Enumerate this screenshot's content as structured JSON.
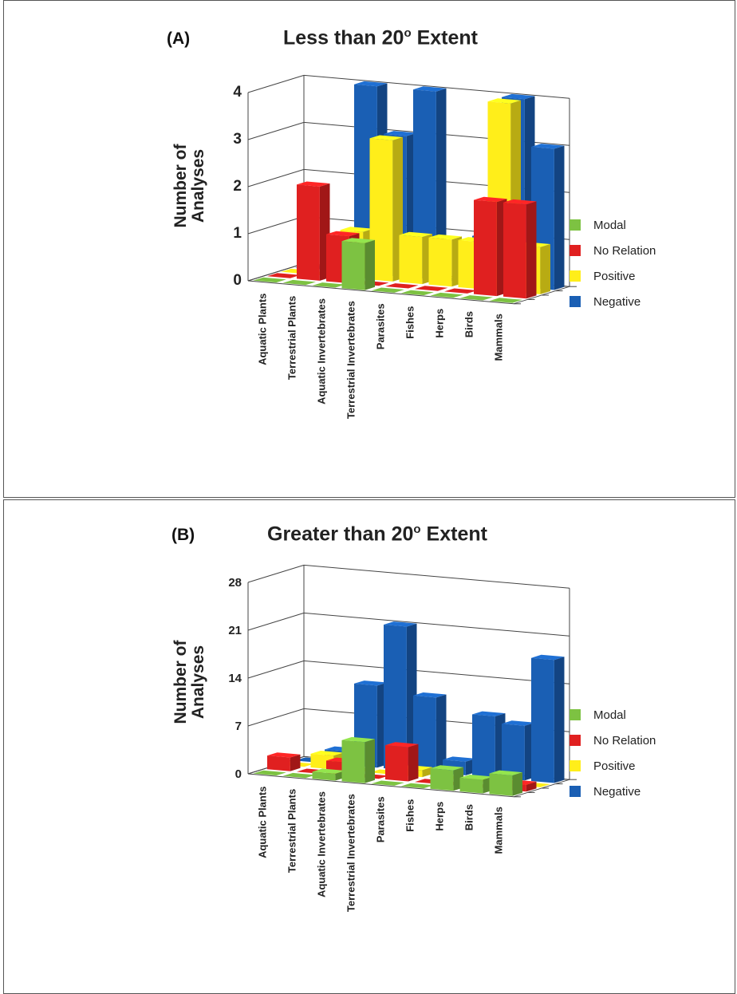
{
  "chart_data": [
    {
      "type": "bar",
      "panel_label": "(A)",
      "title_main": "Less than 20",
      "title_sup": "o",
      "title_rest": " Extent",
      "ylabel_line1": "Number of",
      "ylabel_line2": "Analyses",
      "ylim": [
        0,
        4
      ],
      "yticks": [
        "0",
        "1",
        "2",
        "3",
        "4"
      ],
      "categories": [
        "Aquatic Plants",
        "Terrestrial Plants",
        "Aquatic Invertebrates",
        "Terrestrial Invertebrates",
        "Parasites",
        "Fishes",
        "Herps",
        "Birds",
        "Mammals"
      ],
      "series": [
        {
          "name": "Modal",
          "color": "#7dc242",
          "values": [
            0,
            0,
            0,
            1,
            0,
            0,
            0,
            0,
            0
          ]
        },
        {
          "name": "No Relation",
          "color": "#e02020",
          "values": [
            0,
            2,
            1,
            0,
            0,
            0,
            0,
            2,
            2
          ]
        },
        {
          "name": "Positive",
          "color": "#ffee1a",
          "values": [
            0,
            0,
            1,
            3,
            1,
            1,
            1,
            4,
            1
          ]
        },
        {
          "name": "Negative",
          "color": "#1a5fb4",
          "values": [
            0,
            0,
            4,
            3,
            4,
            0,
            1,
            4,
            3
          ]
        }
      ],
      "legend_position": "right",
      "grid": true
    },
    {
      "type": "bar",
      "panel_label": "(B)",
      "title_main": "Greater than 20",
      "title_sup": "o",
      "title_rest": " Extent",
      "ylabel_line1": "Number of",
      "ylabel_line2": "Analyses",
      "ylim": [
        0,
        28
      ],
      "yticks": [
        "0",
        "7",
        "14",
        "21",
        "28"
      ],
      "categories": [
        "Aquatic Plants",
        "Terrestrial Plants",
        "Aquatic Invertebrates",
        "Terrestrial Invertebrates",
        "Parasites",
        "Fishes",
        "Herps",
        "Birds",
        "Mammals"
      ],
      "series": [
        {
          "name": "Modal",
          "color": "#7dc242",
          "values": [
            0,
            0,
            1,
            6,
            0,
            0,
            3,
            2,
            3
          ]
        },
        {
          "name": "No Relation",
          "color": "#e02020",
          "values": [
            2,
            0,
            2,
            0,
            5,
            0,
            0,
            0,
            1
          ]
        },
        {
          "name": "Positive",
          "color": "#ffee1a",
          "values": [
            0,
            2,
            0,
            0,
            1,
            0,
            0,
            0,
            0
          ]
        },
        {
          "name": "Negative",
          "color": "#1a5fb4",
          "values": [
            0,
            2,
            12,
            21,
            11,
            2,
            9,
            8,
            18
          ]
        }
      ],
      "legend_position": "right",
      "grid": true
    }
  ]
}
